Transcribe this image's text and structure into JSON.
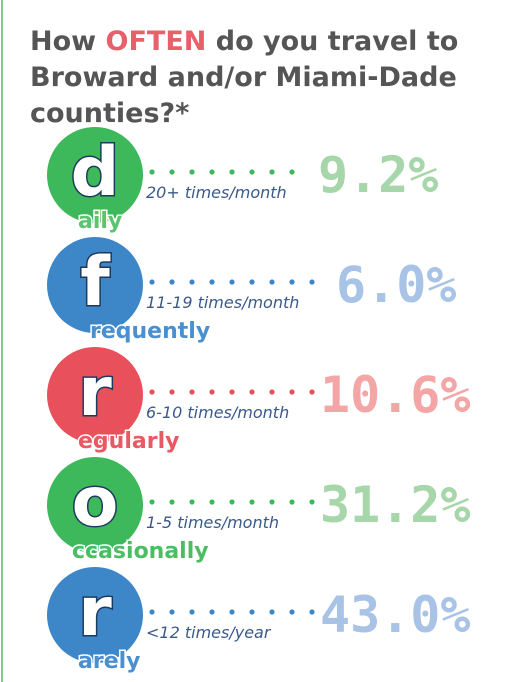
{
  "title": {
    "line1": [
      "How ",
      "OFTEN",
      " do you travel to"
    ],
    "line2": "Broward and/or Miami-Dade",
    "line3": "counties?*"
  },
  "items": [
    {
      "letter": "d",
      "rest": "aily",
      "range": "20+ times/month",
      "percent": "9.2%"
    },
    {
      "letter": "f",
      "rest": "requently",
      "range": "11-19 times/month",
      "percent": "6.0%"
    },
    {
      "letter": "r",
      "rest": "egularly",
      "range": "6-10 times/month",
      "percent": "10.6%"
    },
    {
      "letter": "o",
      "rest": "ccasionally",
      "range": "1-5 times/month",
      "percent": "31.2%"
    },
    {
      "letter": "r",
      "rest": "arely",
      "range": "<12 times/year",
      "percent": "43.0%"
    }
  ]
}
